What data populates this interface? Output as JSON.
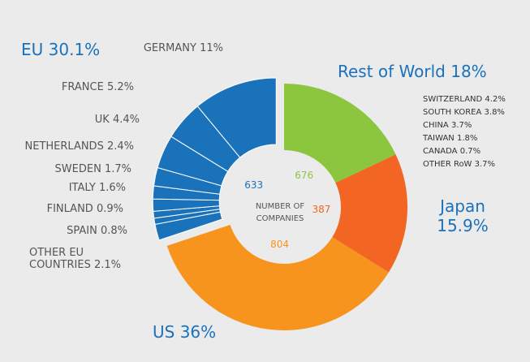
{
  "chart_data": {
    "type": "donut",
    "center_label": "NUMBER OF COMPANIES",
    "series": [
      {
        "name": "Rest of World",
        "values": [
          18
        ],
        "value_labels": [
          "18%"
        ],
        "color": "#8cc63f",
        "count": 676,
        "breakdown": [
          {
            "name": "SWITZERLAND",
            "value": 4.2,
            "value_label": "4.2%"
          },
          {
            "name": "SOUTH KOREA",
            "value": 3.8,
            "value_label": "3.8%"
          },
          {
            "name": "CHINA",
            "value": 3.7,
            "value_label": "3.7%"
          },
          {
            "name": "TAIWAN",
            "value": 1.8,
            "value_label": "1.8%"
          },
          {
            "name": "CANADA",
            "value": 0.7,
            "value_label": "0.7%"
          },
          {
            "name": "OTHER RoW",
            "value": 3.7,
            "value_label": "3.7%"
          }
        ]
      },
      {
        "name": "Japan",
        "values": [
          15.9
        ],
        "value_labels": [
          "15.9%"
        ],
        "color": "#f26522",
        "count": 387
      },
      {
        "name": "US",
        "values": [
          36
        ],
        "value_labels": [
          "36%"
        ],
        "color": "#f7941d",
        "count": 804
      },
      {
        "name": "EU",
        "values": [
          30.1
        ],
        "value_labels": [
          "30.1%"
        ],
        "color": "#1a72bb",
        "count": 633,
        "exploded": true,
        "breakdown": [
          {
            "name": "OTHER EU COUNTRIES",
            "value": 2.1,
            "value_label": "2.1%"
          },
          {
            "name": "SPAIN",
            "value": 0.8,
            "value_label": "0.8%"
          },
          {
            "name": "FINLAND",
            "value": 0.9,
            "value_label": "0.9%"
          },
          {
            "name": "ITALY",
            "value": 1.6,
            "value_label": "1.6%"
          },
          {
            "name": "SWEDEN",
            "value": 1.7,
            "value_label": "1.7%"
          },
          {
            "name": "NETHERLANDS",
            "value": 2.4,
            "value_label": "2.4%"
          },
          {
            "name": "UK",
            "value": 4.4,
            "value_label": "4.4%"
          },
          {
            "name": "FRANCE",
            "value": 5.2,
            "value_label": "5.2%"
          },
          {
            "name": "GERMANY",
            "value": 11,
            "value_label": "11%"
          }
        ]
      }
    ]
  }
}
